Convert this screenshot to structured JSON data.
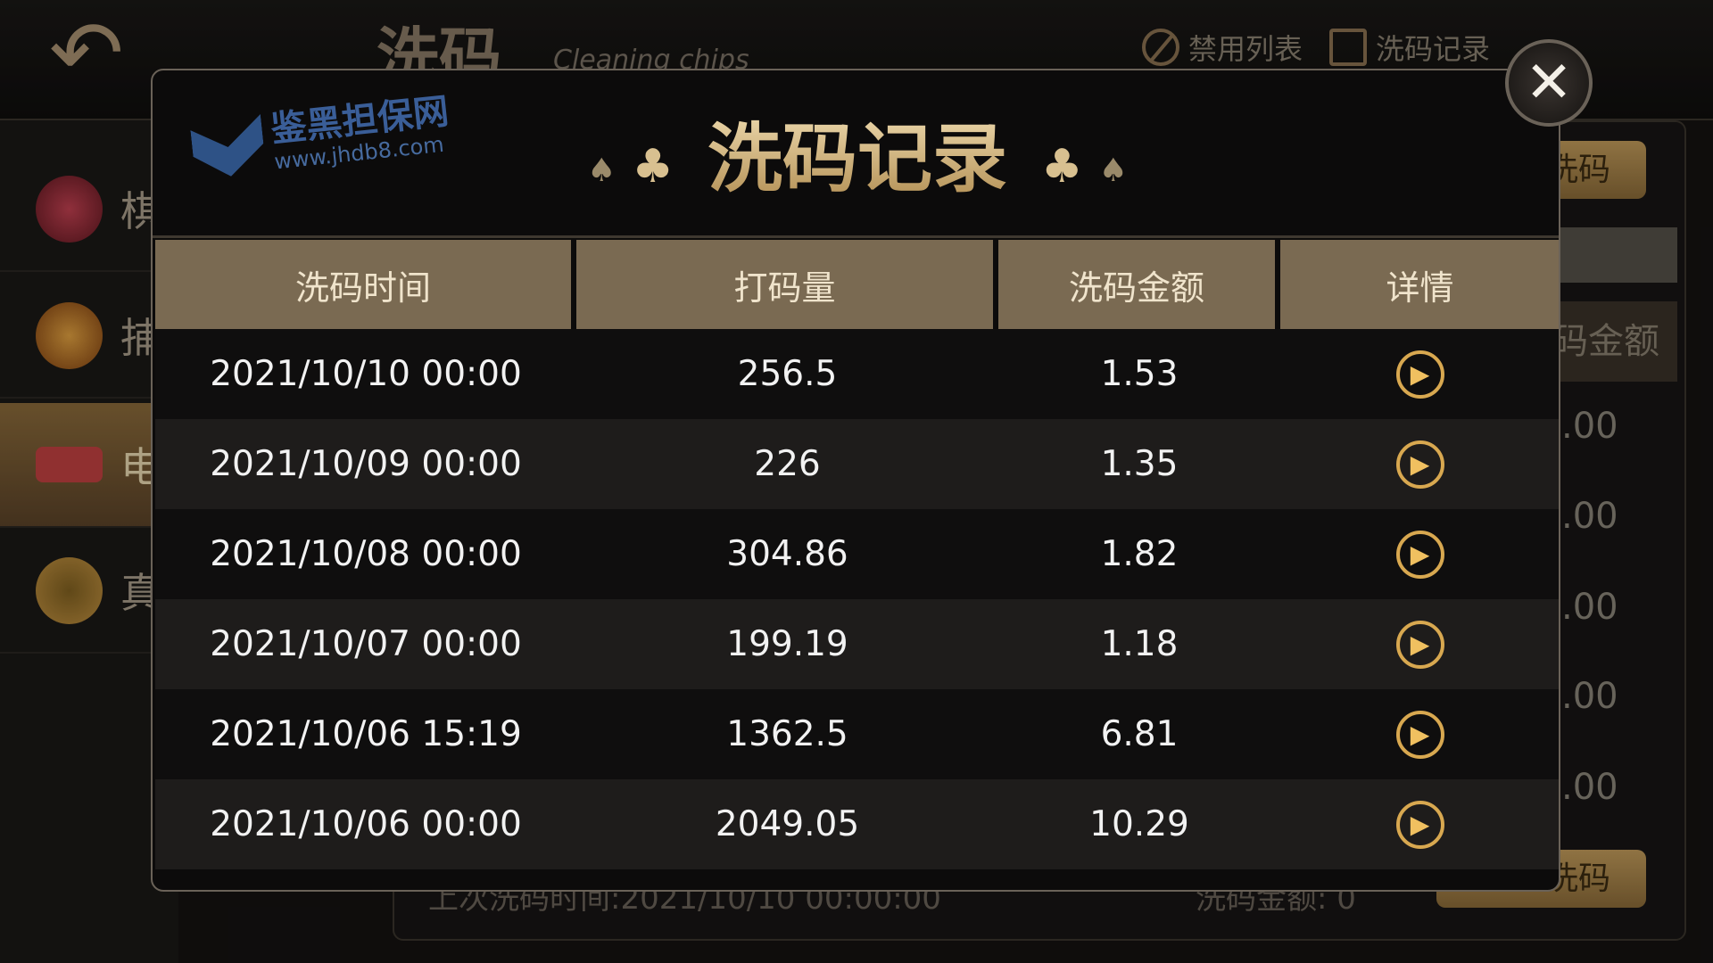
{
  "background": {
    "title": "洗码",
    "subtitle": "Cleaning chips",
    "top_buttons": [
      {
        "label": "禁用列表",
        "icon": "ban-icon"
      },
      {
        "label": "洗码记录",
        "icon": "list-icon"
      }
    ],
    "sidebar": [
      {
        "label": "棋"
      },
      {
        "label": "捕"
      },
      {
        "label": "电",
        "active": true
      },
      {
        "label": "真"
      }
    ],
    "right_button_top": "洗码",
    "right_header": "码金额",
    "right_values": [
      ".00",
      ".00",
      ".00",
      ".00",
      ".00"
    ],
    "right_button_bottom": "洗码",
    "last_time": "上次洗码时间:2021/10/10 00:00:00",
    "last_amount": "洗码金额: 0"
  },
  "modal": {
    "title": "洗码记录",
    "columns": [
      "洗码时间",
      "打码量",
      "洗码金额",
      "详情"
    ],
    "rows": [
      {
        "time": "2021/10/10 00:00",
        "bet": "256.5",
        "amount": "1.53"
      },
      {
        "time": "2021/10/09 00:00",
        "bet": "226",
        "amount": "1.35"
      },
      {
        "time": "2021/10/08 00:00",
        "bet": "304.86",
        "amount": "1.82"
      },
      {
        "time": "2021/10/07 00:00",
        "bet": "199.19",
        "amount": "1.18"
      },
      {
        "time": "2021/10/06 15:19",
        "bet": "1362.5",
        "amount": "6.81"
      },
      {
        "time": "2021/10/06 00:00",
        "bet": "2049.05",
        "amount": "10.29"
      }
    ],
    "accent": "#d8a850"
  },
  "watermark": {
    "name": "鉴黑担保网",
    "url": "www.jhdb8.com"
  }
}
